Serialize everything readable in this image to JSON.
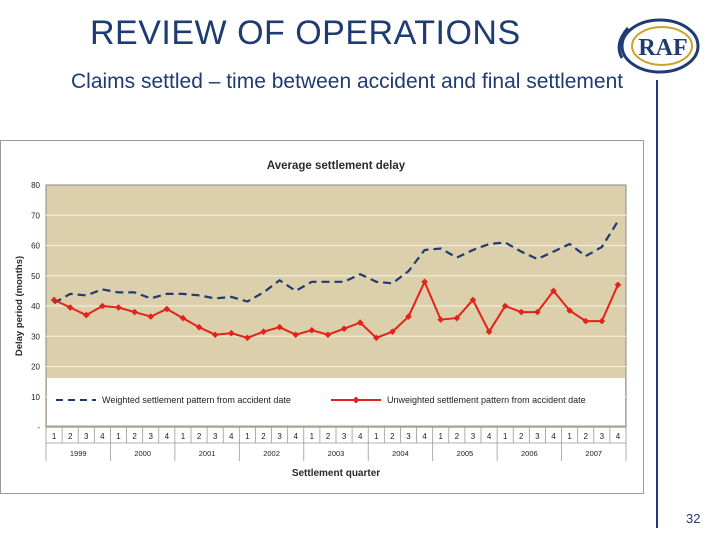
{
  "header": {
    "title": "REVIEW OF OPERATIONS",
    "subtitle": "Claims settled – time between accident and final settlement",
    "logo_text": "RAF",
    "page_number": "32"
  },
  "colors": {
    "title": "#1f3b73",
    "plot_bg": "#dccfac",
    "weighted": "#1f3b73",
    "unweighted": "#e2231a"
  },
  "chart_data": {
    "type": "line",
    "title": "Average settlement delay",
    "xlabel": "Settlement quarter",
    "ylabel": "Delay period (months)",
    "ylim": [
      0,
      80
    ],
    "yticks": [
      "-",
      "10",
      "20",
      "30",
      "40",
      "50",
      "60",
      "70",
      "80"
    ],
    "quarters": [
      "1",
      "2",
      "3",
      "4",
      "1",
      "2",
      "3",
      "4",
      "1",
      "2",
      "3",
      "4",
      "1",
      "2",
      "3",
      "4",
      "1",
      "2",
      "3",
      "4",
      "1",
      "2",
      "3",
      "4",
      "1",
      "2",
      "3",
      "4",
      "1",
      "2",
      "3",
      "4",
      "1",
      "2",
      "3",
      "4"
    ],
    "years": [
      "1999",
      "2000",
      "2001",
      "2002",
      "2003",
      "2004",
      "2005",
      "2006",
      "2007"
    ],
    "grid": true,
    "legend": "bottom",
    "series": [
      {
        "name": "Weighted settlement pattern from accident date",
        "style": "dashed",
        "values": [
          41,
          44,
          43.5,
          45.5,
          44.5,
          44.5,
          42.5,
          44,
          44,
          43.5,
          42.5,
          43,
          41.5,
          44.5,
          48.5,
          45,
          48,
          48,
          48,
          50.5,
          48,
          47.5,
          51.5,
          58.5,
          59,
          56,
          58.5,
          60.5,
          61,
          58,
          55.5,
          58,
          60.5,
          56.5,
          59.5,
          68
        ]
      },
      {
        "name": "Unweighted settlement pattern from accident date",
        "style": "solid-diamond",
        "values": [
          42,
          39.5,
          37,
          40,
          39.5,
          38,
          36.5,
          39,
          36,
          33,
          30.5,
          31,
          29.5,
          31.5,
          33,
          30.5,
          32,
          30.5,
          32.5,
          34.5,
          29.5,
          31.5,
          36.5,
          48,
          35.5,
          36,
          42,
          31.5,
          40,
          38,
          38,
          45,
          38.5,
          35,
          35,
          47
        ]
      }
    ]
  }
}
